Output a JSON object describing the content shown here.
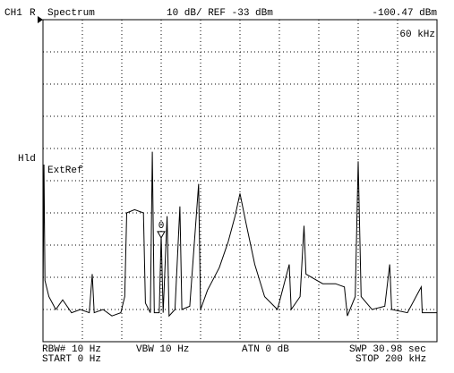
{
  "chart_data": {
    "type": "line",
    "channel": "CH1",
    "mode": "R",
    "title": "Spectrum",
    "scale_label": "10 dB/ REF -33 dBm",
    "marker_readout_value": "-100.47 dBm",
    "marker_readout_freq": "60 kHz",
    "hold_label": "Hld",
    "ref_label": "ExtRef",
    "rbw": "RBW# 10 Hz",
    "vbw": "VBW 10 Hz",
    "atn": "ATN  0 dB",
    "swp": "SWP  30.98 sec",
    "start": "START  0 Hz",
    "stop": "STOP  200 kHz",
    "color": "#000000",
    "xlim": [
      0,
      200
    ],
    "ylim": [
      -133,
      -33
    ],
    "x": [
      0,
      0.5,
      1,
      3,
      6.5,
      10,
      14.5,
      19,
      23.5,
      25,
      26,
      30.5,
      35,
      39.5,
      41.5,
      42.5,
      46.5,
      51,
      52,
      54.5,
      55.5,
      56.5,
      59,
      60,
      61,
      63,
      64,
      67,
      69.5,
      70.5,
      74.5,
      79,
      80,
      83.5,
      89.5,
      94,
      97.5,
      100,
      103,
      107.5,
      112.5,
      119,
      125,
      126,
      130.5,
      132.5,
      133.5,
      142,
      148.5,
      153,
      154.5,
      158.5,
      160,
      161.5,
      167,
      173.5,
      176,
      177,
      185,
      192,
      192.5,
      200
    ],
    "values": [
      -121,
      -78,
      -114,
      -119,
      -123,
      -120,
      -124,
      -123,
      -124,
      -112,
      -124,
      -123,
      -125,
      -124,
      -119,
      -93,
      -92,
      -93,
      -121,
      -124,
      -74,
      -124,
      -124,
      -100,
      -124,
      -94,
      -125,
      -123,
      -91,
      -123,
      -122,
      -84,
      -123,
      -117,
      -110,
      -102,
      -94,
      -87,
      -96,
      -109,
      -119,
      -123,
      -109,
      -123,
      -119,
      -97,
      -112,
      -115,
      -115,
      -116,
      -125,
      -119,
      -77,
      -119,
      -123,
      -122,
      -109,
      -123,
      -124,
      -116,
      -124,
      -124
    ],
    "marker": {
      "label": "0",
      "x": 60,
      "value": -100.47
    }
  }
}
